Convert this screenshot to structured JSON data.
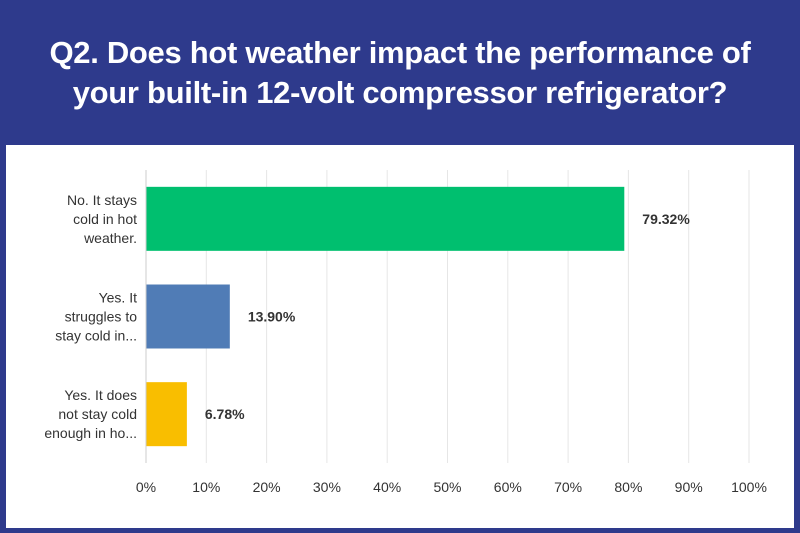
{
  "header": {
    "title_line1": "Q2. Does hot weather impact the performance of",
    "title_line2": "your built-in 12-volt compressor refrigerator?"
  },
  "chart_data": {
    "type": "bar",
    "orientation": "horizontal",
    "categories": [
      [
        "No. It stays",
        "cold in hot",
        "weather."
      ],
      [
        "Yes. It",
        "struggles to",
        "stay cold in..."
      ],
      [
        "Yes. It does",
        "not stay cold",
        "enough in ho..."
      ]
    ],
    "values": [
      79.32,
      13.9,
      6.78
    ],
    "value_labels": [
      "79.32%",
      "13.90%",
      "6.78%"
    ],
    "colors": [
      "#00bf6f",
      "#507cb6",
      "#f9be00"
    ],
    "xlim": [
      0,
      100
    ],
    "xticks": [
      0,
      10,
      20,
      30,
      40,
      50,
      60,
      70,
      80,
      90,
      100
    ],
    "xtick_labels": [
      "0%",
      "10%",
      "20%",
      "30%",
      "40%",
      "50%",
      "60%",
      "70%",
      "80%",
      "90%",
      "100%"
    ],
    "grid": true,
    "gridline_color": "#e6e6e6",
    "legend": "none"
  }
}
